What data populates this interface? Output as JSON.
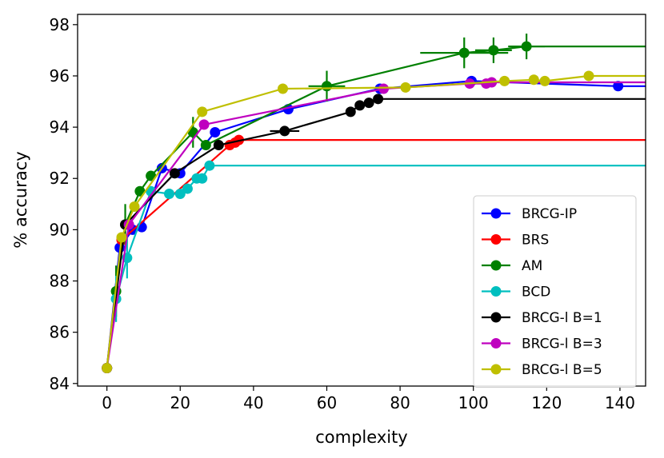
{
  "chart_data": {
    "type": "line",
    "xlabel": "complexity",
    "ylabel": "% accuracy",
    "xlim": [
      -8,
      147
    ],
    "ylim": [
      83.9,
      98.4
    ],
    "xticks": [
      0,
      20,
      40,
      60,
      80,
      100,
      120,
      140
    ],
    "yticks": [
      84,
      86,
      88,
      90,
      92,
      94,
      96,
      98
    ],
    "legend_position": "lower-right",
    "series": [
      {
        "name": "BRCG-IP",
        "color": "#0000ff",
        "extend_to": 147,
        "points": [
          {
            "x": 0,
            "y": 84.6
          },
          {
            "x": 3.5,
            "y": 89.3
          },
          {
            "x": 7,
            "y": 90.0
          },
          {
            "x": 9.5,
            "y": 90.1
          },
          {
            "x": 15,
            "y": 92.4
          },
          {
            "x": 20,
            "y": 92.2
          },
          {
            "x": 29.5,
            "y": 93.8
          },
          {
            "x": 49.5,
            "y": 94.7
          },
          {
            "x": 74.5,
            "y": 95.5
          },
          {
            "x": 99.5,
            "y": 95.8
          },
          {
            "x": 139.5,
            "y": 95.6
          }
        ]
      },
      {
        "name": "BRS",
        "color": "#ff0000",
        "extend_to": 147,
        "points": [
          {
            "x": 0,
            "y": 84.6
          },
          {
            "x": 4,
            "y": 89.6
          },
          {
            "x": 33.5,
            "y": 93.3
          },
          {
            "x": 35,
            "y": 93.4
          },
          {
            "x": 36,
            "y": 93.5
          }
        ]
      },
      {
        "name": "AM",
        "color": "#008000",
        "extend_to": 147,
        "points": [
          {
            "x": 0,
            "y": 84.6
          },
          {
            "x": 2.5,
            "y": 87.6,
            "yerr": 1.0
          },
          {
            "x": 5,
            "y": 90.2,
            "yerr": 0.8
          },
          {
            "x": 9,
            "y": 91.5
          },
          {
            "x": 12,
            "y": 92.1
          },
          {
            "x": 23.5,
            "y": 93.8,
            "yerr": 0.6
          },
          {
            "x": 27,
            "y": 93.3
          },
          {
            "x": 60,
            "y": 95.6,
            "yerr": 0.6,
            "xerr": 5
          },
          {
            "x": 97.5,
            "y": 96.9,
            "yerr": 0.6,
            "xerr": 12
          },
          {
            "x": 105.5,
            "y": 97.0,
            "yerr": 0.5,
            "xerr": 5
          },
          {
            "x": 114.5,
            "y": 97.15,
            "yerr": 0.5,
            "xerr": 5
          }
        ]
      },
      {
        "name": "BCD",
        "color": "#00bfbf",
        "extend_to": 147,
        "points": [
          {
            "x": 0,
            "y": 84.6
          },
          {
            "x": 2.5,
            "y": 87.3,
            "yerr": 0.9
          },
          {
            "x": 5.5,
            "y": 88.9,
            "yerr": 0.8
          },
          {
            "x": 12,
            "y": 91.5
          },
          {
            "x": 17,
            "y": 91.4
          },
          {
            "x": 20,
            "y": 91.4
          },
          {
            "x": 22,
            "y": 91.6
          },
          {
            "x": 24.5,
            "y": 92.0
          },
          {
            "x": 26,
            "y": 92.0
          },
          {
            "x": 28,
            "y": 92.5
          }
        ]
      },
      {
        "name": "BRCG-l B=1",
        "color": "#000000",
        "extend_to": 147,
        "points": [
          {
            "x": 0,
            "y": 84.6
          },
          {
            "x": 5,
            "y": 90.2
          },
          {
            "x": 18.5,
            "y": 92.2
          },
          {
            "x": 30.5,
            "y": 93.3
          },
          {
            "x": 48.5,
            "y": 93.85,
            "xerr": 4
          },
          {
            "x": 66.5,
            "y": 94.6
          },
          {
            "x": 69,
            "y": 94.85
          },
          {
            "x": 71.5,
            "y": 94.95
          },
          {
            "x": 74,
            "y": 95.1
          }
        ]
      },
      {
        "name": "BRCG-l B=3",
        "color": "#bf00bf",
        "extend_to": 147,
        "points": [
          {
            "x": 0,
            "y": 84.6
          },
          {
            "x": 6,
            "y": 90.2
          },
          {
            "x": 26.5,
            "y": 94.1
          },
          {
            "x": 75.5,
            "y": 95.5
          },
          {
            "x": 99,
            "y": 95.7
          },
          {
            "x": 103.5,
            "y": 95.7
          },
          {
            "x": 105,
            "y": 95.75
          }
        ]
      },
      {
        "name": "BRCG-l B=5",
        "color": "#bfbf00",
        "extend_to": 147,
        "points": [
          {
            "x": 0,
            "y": 84.6
          },
          {
            "x": 4,
            "y": 89.7
          },
          {
            "x": 7.5,
            "y": 90.9
          },
          {
            "x": 26,
            "y": 94.6
          },
          {
            "x": 48,
            "y": 95.5
          },
          {
            "x": 81.5,
            "y": 95.55
          },
          {
            "x": 108.5,
            "y": 95.8
          },
          {
            "x": 116.5,
            "y": 95.85
          },
          {
            "x": 119.5,
            "y": 95.8
          },
          {
            "x": 131.5,
            "y": 96.0
          }
        ]
      }
    ]
  }
}
